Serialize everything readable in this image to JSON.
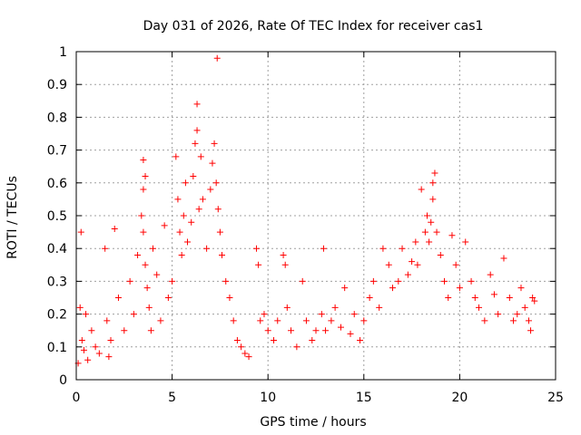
{
  "chart_data": {
    "type": "scatter",
    "title": "Day 031 of 2026, Rate Of TEC Index for receiver cas1",
    "xlabel": "GPS time / hours",
    "ylabel": "ROTI / TECUs",
    "xlim": [
      0,
      25
    ],
    "ylim": [
      0,
      1
    ],
    "xticks": [
      0,
      5,
      10,
      15,
      20,
      25
    ],
    "yticks": [
      0,
      0.1,
      0.2,
      0.3,
      0.4,
      0.5,
      0.6,
      0.7,
      0.8,
      0.9,
      1
    ],
    "grid": true,
    "marker": "plus",
    "color": "#ff0000",
    "series": [
      {
        "x": [
          0.1,
          0.2,
          0.25,
          0.3,
          0.4,
          0.5,
          0.6,
          0.8,
          1.0,
          1.2,
          1.5,
          1.6,
          1.7,
          1.8,
          2.0,
          2.2,
          2.5,
          2.8,
          3.0,
          3.2,
          3.4,
          3.5,
          3.5,
          3.5,
          3.6,
          3.6,
          3.7,
          3.8,
          3.9,
          4.0,
          4.2,
          4.4,
          4.6,
          4.8,
          5.0,
          5.2,
          5.3,
          5.4,
          5.5,
          5.6,
          5.7,
          5.8,
          6.0,
          6.1,
          6.2,
          6.3,
          6.3,
          6.4,
          6.5,
          6.6,
          6.8,
          7.0,
          7.1,
          7.2,
          7.3,
          7.35,
          7.4,
          7.5,
          7.6,
          7.8,
          8.0,
          8.2,
          8.4,
          8.6,
          8.8,
          9.0,
          9.4,
          9.5,
          9.6,
          9.8,
          10.0,
          10.3,
          10.5,
          10.8,
          10.9,
          11.0,
          11.2,
          11.5,
          11.8,
          12.0,
          12.3,
          12.5,
          12.8,
          12.9,
          13.0,
          13.3,
          13.5,
          13.8,
          14.0,
          14.3,
          14.5,
          14.8,
          15.0,
          15.3,
          15.5,
          15.8,
          16.0,
          16.3,
          16.5,
          16.8,
          17.0,
          17.3,
          17.5,
          17.7,
          17.8,
          18.0,
          18.2,
          18.3,
          18.4,
          18.5,
          18.6,
          18.6,
          18.7,
          18.8,
          19.0,
          19.2,
          19.4,
          19.6,
          19.8,
          20.0,
          20.3,
          20.6,
          20.8,
          21.0,
          21.3,
          21.6,
          21.8,
          22.0,
          22.3,
          22.6,
          22.8,
          23.0,
          23.2,
          23.4,
          23.6,
          23.7,
          23.8,
          23.9
        ],
        "y": [
          0.05,
          0.22,
          0.45,
          0.12,
          0.09,
          0.2,
          0.06,
          0.15,
          0.1,
          0.08,
          0.4,
          0.18,
          0.07,
          0.12,
          0.46,
          0.25,
          0.15,
          0.3,
          0.2,
          0.38,
          0.5,
          0.67,
          0.58,
          0.45,
          0.62,
          0.35,
          0.28,
          0.22,
          0.15,
          0.4,
          0.32,
          0.18,
          0.47,
          0.25,
          0.3,
          0.68,
          0.55,
          0.45,
          0.38,
          0.5,
          0.6,
          0.42,
          0.48,
          0.62,
          0.72,
          0.84,
          0.76,
          0.52,
          0.68,
          0.55,
          0.4,
          0.58,
          0.66,
          0.72,
          0.6,
          0.98,
          0.52,
          0.45,
          0.38,
          0.3,
          0.25,
          0.18,
          0.12,
          0.1,
          0.08,
          0.07,
          0.4,
          0.35,
          0.18,
          0.2,
          0.15,
          0.12,
          0.18,
          0.38,
          0.35,
          0.22,
          0.15,
          0.1,
          0.3,
          0.18,
          0.12,
          0.15,
          0.2,
          0.4,
          0.15,
          0.18,
          0.22,
          0.16,
          0.28,
          0.14,
          0.2,
          0.12,
          0.18,
          0.25,
          0.3,
          0.22,
          0.4,
          0.35,
          0.28,
          0.3,
          0.4,
          0.32,
          0.36,
          0.42,
          0.35,
          0.58,
          0.45,
          0.5,
          0.42,
          0.48,
          0.55,
          0.6,
          0.63,
          0.45,
          0.38,
          0.3,
          0.25,
          0.44,
          0.35,
          0.28,
          0.42,
          0.3,
          0.25,
          0.22,
          0.18,
          0.32,
          0.26,
          0.2,
          0.37,
          0.25,
          0.18,
          0.2,
          0.28,
          0.22,
          0.18,
          0.15,
          0.25,
          0.24
        ]
      }
    ]
  }
}
